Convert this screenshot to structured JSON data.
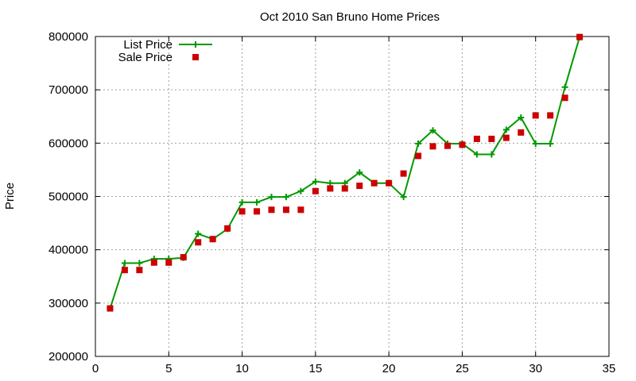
{
  "chart_data": {
    "type": "line",
    "title": "Oct 2010 San Bruno Home Prices",
    "xlabel": "",
    "ylabel": "Price",
    "xlim": [
      0,
      35
    ],
    "ylim": [
      200000,
      800000
    ],
    "xticks": [
      0,
      5,
      10,
      15,
      20,
      25,
      30,
      35
    ],
    "yticks": [
      200000,
      300000,
      400000,
      500000,
      600000,
      700000,
      800000
    ],
    "grid": true,
    "legend_position": "top-left",
    "x": [
      1,
      2,
      3,
      4,
      5,
      6,
      7,
      8,
      9,
      10,
      11,
      12,
      13,
      14,
      15,
      16,
      17,
      18,
      19,
      20,
      21,
      22,
      23,
      24,
      25,
      26,
      27,
      28,
      29,
      30,
      31,
      32,
      33
    ],
    "series": [
      {
        "name": "List Price",
        "style": "line-points",
        "color": "#009900",
        "values": [
          290000,
          375000,
          375000,
          383000,
          383000,
          385000,
          430000,
          420000,
          439000,
          489000,
          489000,
          499000,
          499000,
          510000,
          528000,
          525000,
          525000,
          545000,
          525000,
          525000,
          499000,
          599000,
          624000,
          599000,
          599000,
          579000,
          579000,
          625000,
          648000,
          599000,
          599000,
          705000,
          799000
        ]
      },
      {
        "name": "Sale Price",
        "style": "points",
        "color": "#cc0000",
        "values": [
          290000,
          362000,
          362000,
          376000,
          376000,
          386000,
          414000,
          420000,
          440000,
          472000,
          472000,
          475000,
          475000,
          475000,
          510000,
          515000,
          515000,
          520000,
          525000,
          525000,
          543000,
          576000,
          594000,
          595000,
          597000,
          608000,
          608000,
          610000,
          620000,
          652000,
          652000,
          685000,
          799000
        ]
      }
    ]
  }
}
